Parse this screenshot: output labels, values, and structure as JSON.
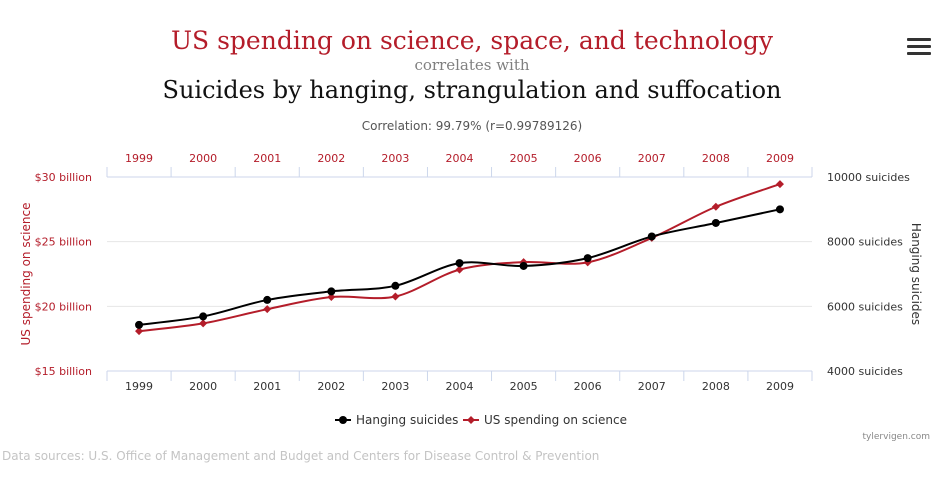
{
  "header": {
    "title": "US spending on science, space, and technology",
    "connector": "correlates with",
    "subtitle": "Suicides by hanging, strangulation and suffocation",
    "correlation": "Correlation: 99.79% (r=0.99789126)"
  },
  "footer": {
    "credit": "tylervigen.com",
    "sources": "Data sources: U.S. Office of Management and Budget and Centers for Disease Control & Prevention"
  },
  "icons": {
    "menu": "hamburger-menu-icon"
  },
  "chart_data": {
    "type": "line",
    "categories": [
      "1999",
      "2000",
      "2001",
      "2002",
      "2003",
      "2004",
      "2005",
      "2006",
      "2007",
      "2008",
      "2009"
    ],
    "left_axis": {
      "label": "US spending on science",
      "ticks": [
        "$15 billion",
        "$20 billion",
        "$25 billion",
        "$30 billion"
      ],
      "tick_values": [
        15,
        20,
        25,
        30
      ],
      "range": [
        15,
        30
      ],
      "color": "#b41d2a"
    },
    "right_axis": {
      "label": "Hanging suicides",
      "ticks": [
        "4000 suicides",
        "6000 suicides",
        "8000 suicides",
        "10000 suicides"
      ],
      "tick_values": [
        4000,
        6000,
        8000,
        10000
      ],
      "range": [
        4000,
        10000
      ],
      "color": "#333333"
    },
    "series": [
      {
        "name": "Hanging suicides",
        "axis": "right",
        "color": "#000000",
        "marker": "circle",
        "values": [
          5427,
          5688,
          6198,
          6462,
          6635,
          7336,
          7248,
          7491,
          8161,
          8578,
          9000
        ]
      },
      {
        "name": "US spending on science",
        "axis": "left",
        "color": "#b41d2a",
        "marker": "diamond",
        "values": [
          18.08,
          18.68,
          19.78,
          20.72,
          20.76,
          22.84,
          23.42,
          23.4,
          25.29,
          27.7,
          29.45
        ]
      }
    ],
    "legend_position": "bottom-center",
    "grid": true
  }
}
